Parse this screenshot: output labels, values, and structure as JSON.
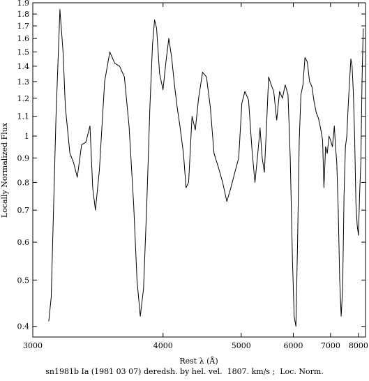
{
  "chart_data": {
    "type": "line",
    "title": "",
    "xlabel": "Rest λ (Å)",
    "ylabel": "Locally Normalized Flux",
    "caption": "sn1981b Ia (1981 03 07) deredsh. by hel. vel.  1807. km/s ;  Loc. Norm.",
    "x_scale": "reciprocal",
    "y_scale": "log",
    "xlim": [
      3000,
      8300
    ],
    "ylim": [
      0.38,
      1.9
    ],
    "x_ticks": [
      3000,
      4000,
      5000,
      6000,
      7000,
      8000
    ],
    "x_tick_labels": [
      "3000",
      "4000",
      "5000",
      "6000",
      "7000",
      "8000"
    ],
    "y_ticks": [
      0.4,
      0.5,
      0.6,
      0.7,
      0.8,
      0.9,
      1,
      1.1,
      1.2,
      1.3,
      1.4,
      1.5,
      1.6,
      1.7,
      1.8,
      1.9
    ],
    "y_tick_labels": [
      "0.4",
      "0.5",
      "0.6",
      "0.7",
      "0.8",
      "0.9",
      "1",
      "1.1",
      "1.2",
      "1.3",
      "1.4",
      "1.5",
      "1.6",
      "1.7",
      "1.8",
      "1.9"
    ],
    "grid": false,
    "series": [
      {
        "x": [
          3095,
          3110,
          3140,
          3165,
          3185,
          3200,
          3230,
          3255,
          3280,
          3310,
          3340,
          3370,
          3390,
          3410,
          3440,
          3480,
          3520,
          3560,
          3600,
          3640,
          3680,
          3720,
          3750,
          3780,
          3810,
          3840,
          3870,
          3895,
          3915,
          3935,
          3965,
          4000,
          4030,
          4060,
          4090,
          4120,
          4150,
          4180,
          4220,
          4250,
          4280,
          4320,
          4360,
          4400,
          4450,
          4500,
          4550,
          4600,
          4660,
          4720,
          4780,
          4840,
          4900,
          4960,
          5010,
          5060,
          5120,
          5180,
          5230,
          5280,
          5320,
          5360,
          5400,
          5440,
          5480,
          5530,
          5580,
          5640,
          5700,
          5760,
          5820,
          5880,
          5930,
          5980,
          6020,
          6060,
          6100,
          6140,
          6180,
          6230,
          6280,
          6340,
          6400,
          6460,
          6520,
          6580,
          6640,
          6700,
          6760,
          6800,
          6850,
          6900,
          6950,
          7000,
          7060,
          7120,
          7160,
          7200,
          7250,
          7300,
          7350,
          7400,
          7450,
          7500,
          7550,
          7600,
          7650,
          7700,
          7750,
          7800,
          7850,
          7900,
          7950,
          8000,
          8050,
          8100,
          8150,
          8200
        ],
        "y": [
          0.41,
          0.46,
          1.1,
          1.84,
          1.5,
          1.15,
          0.92,
          0.88,
          0.82,
          0.96,
          0.97,
          1.05,
          0.78,
          0.7,
          0.85,
          1.3,
          1.5,
          1.42,
          1.4,
          1.33,
          1.05,
          0.72,
          0.5,
          0.42,
          0.48,
          0.72,
          1.15,
          1.55,
          1.75,
          1.68,
          1.35,
          1.25,
          1.43,
          1.6,
          1.46,
          1.28,
          1.15,
          1.05,
          0.92,
          0.78,
          0.8,
          1.1,
          1.03,
          1.2,
          1.36,
          1.33,
          1.15,
          0.92,
          0.86,
          0.8,
          0.73,
          0.78,
          0.84,
          0.9,
          1.17,
          1.24,
          1.19,
          0.93,
          0.8,
          0.92,
          1.04,
          0.9,
          0.84,
          1.05,
          1.33,
          1.28,
          1.24,
          1.08,
          1.24,
          1.2,
          1.28,
          1.22,
          0.9,
          0.55,
          0.42,
          0.4,
          0.6,
          0.98,
          1.22,
          1.28,
          1.46,
          1.43,
          1.3,
          1.27,
          1.18,
          1.12,
          1.09,
          1.04,
          0.98,
          0.78,
          0.95,
          0.92,
          1.0,
          0.98,
          0.95,
          1.05,
          0.95,
          0.88,
          0.7,
          0.5,
          0.42,
          0.48,
          0.75,
          0.95,
          1.0,
          1.15,
          1.3,
          1.45,
          1.4,
          1.22,
          0.98,
          0.72,
          0.65,
          0.62,
          0.76,
          0.88,
          1.3,
          1.68
        ]
      }
    ]
  }
}
